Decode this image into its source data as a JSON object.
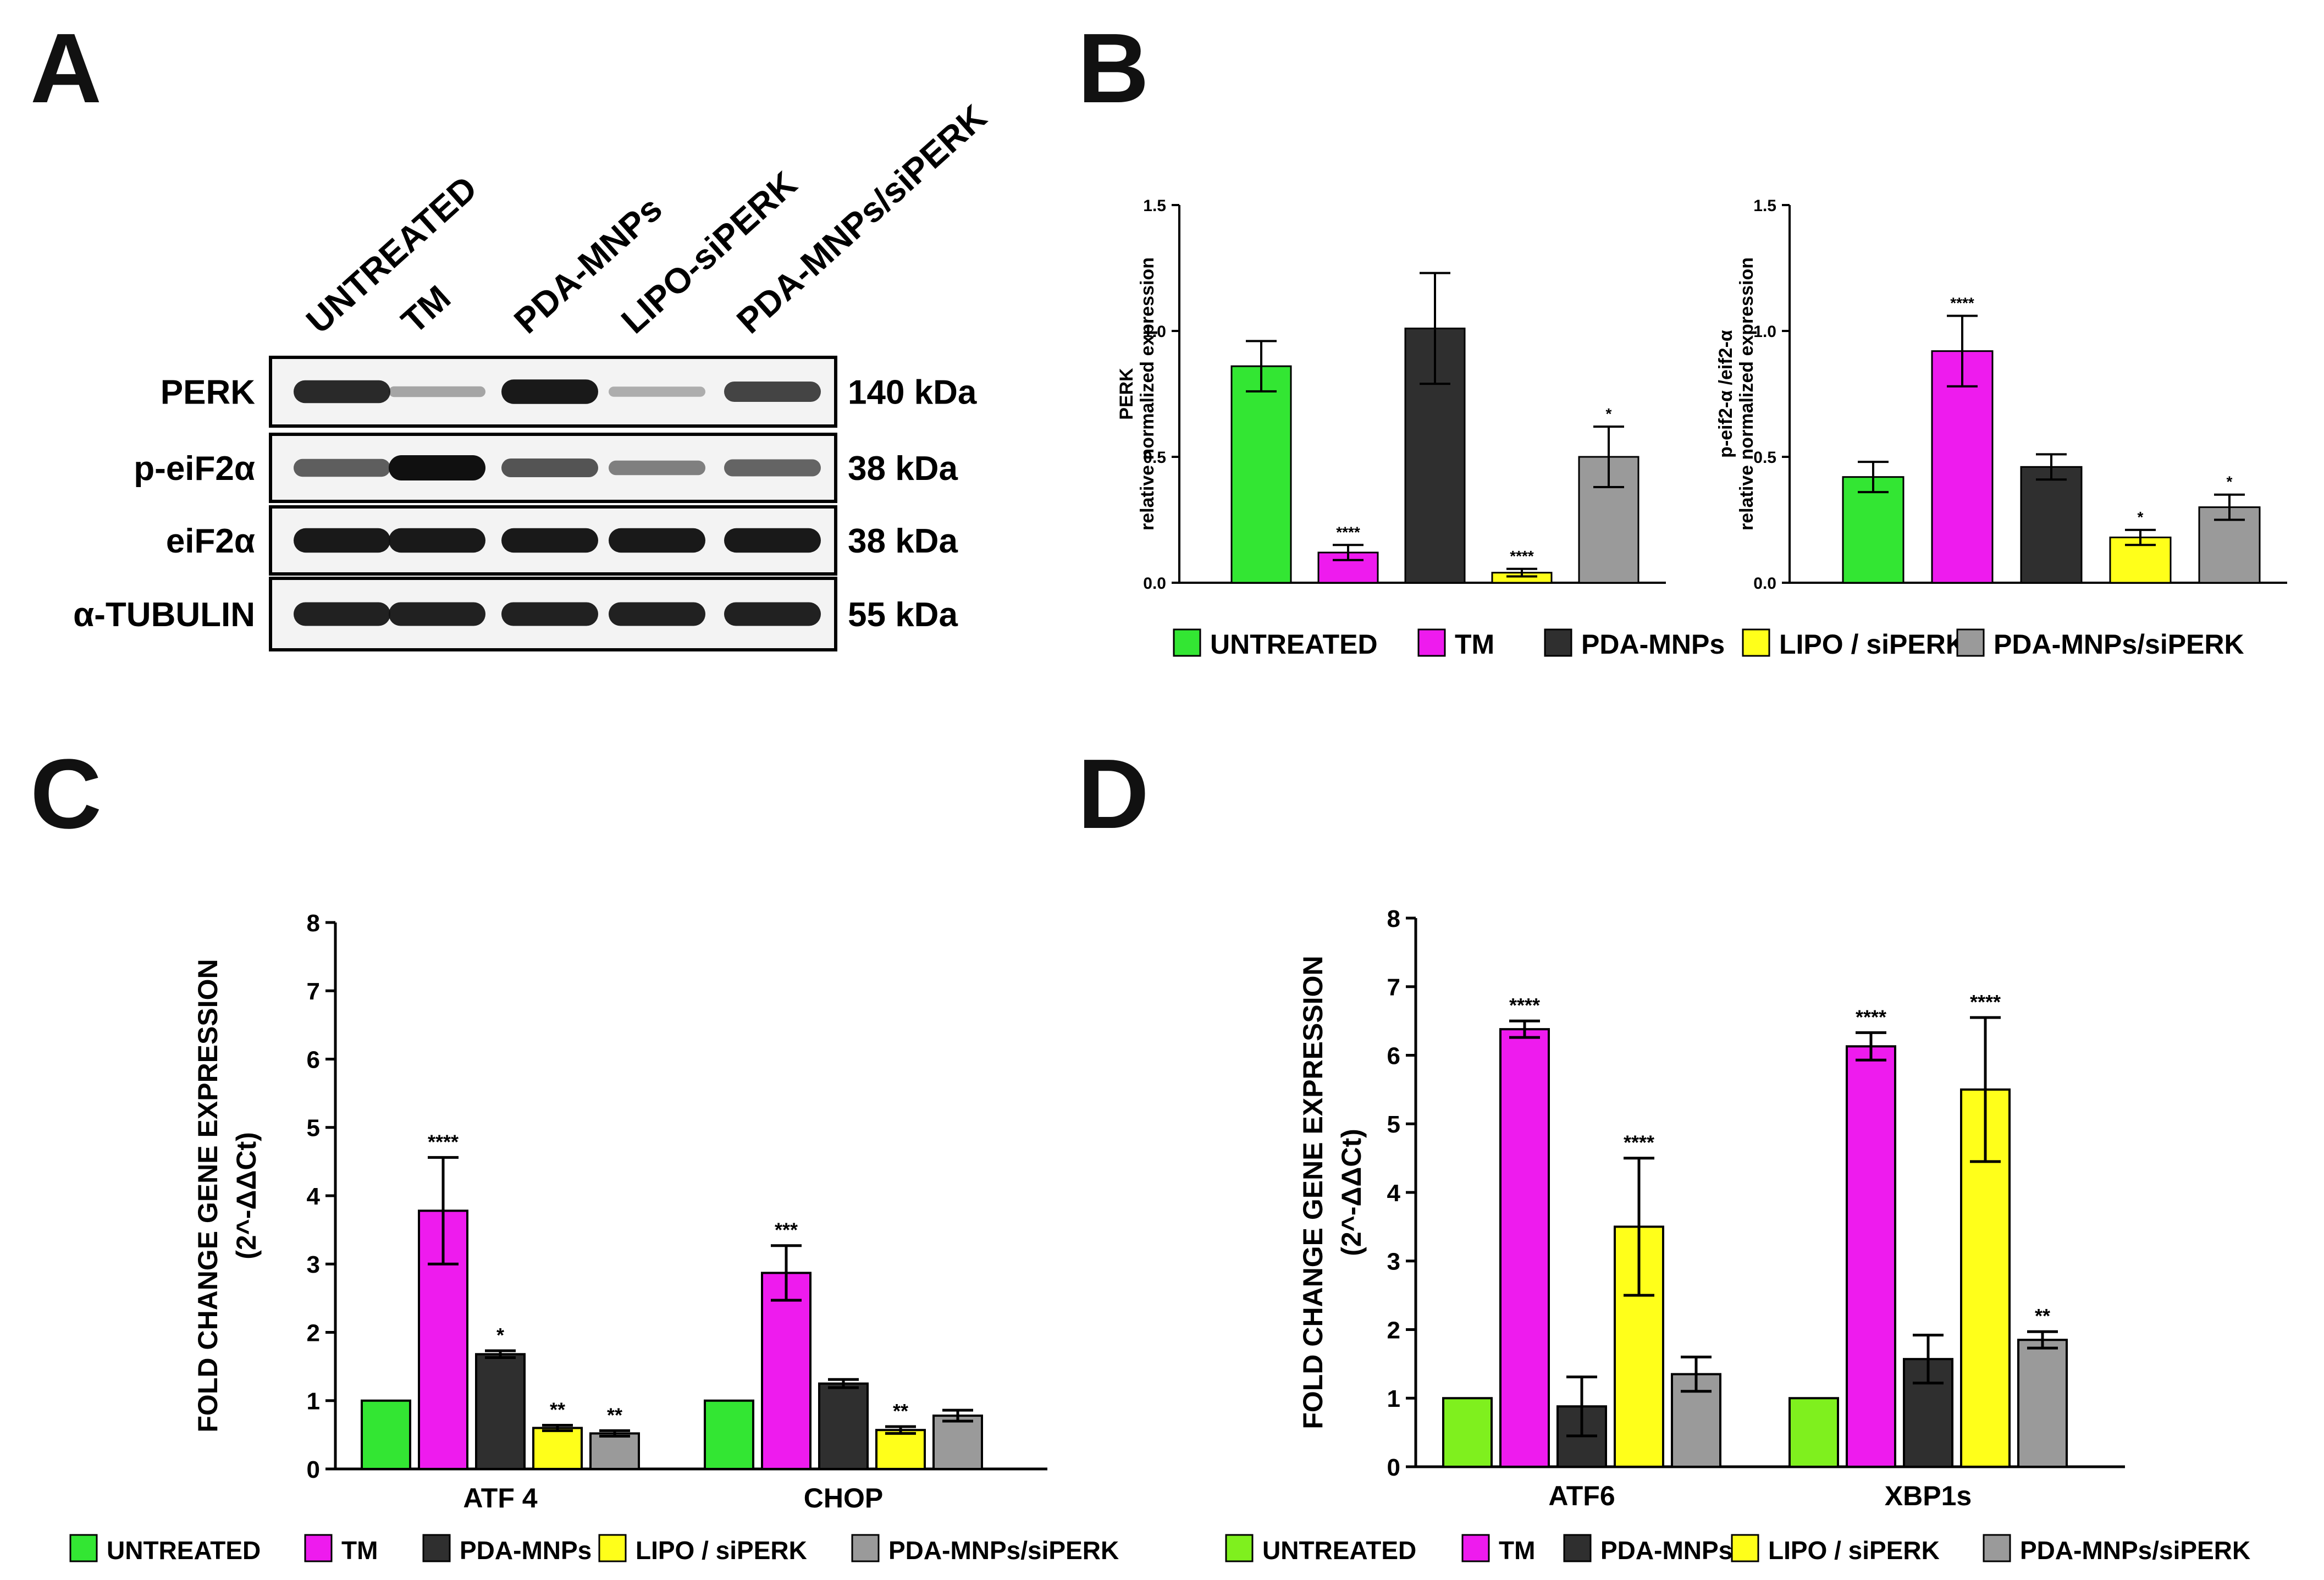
{
  "panels": {
    "a": "A",
    "b": "B",
    "c": "C",
    "d": "D"
  },
  "colors": {
    "untreated": "#33e633",
    "untreated_alt": "#7ff01e",
    "tm": "#ee1bee",
    "pda": "#2f2f2f",
    "lipo": "#ffff1a",
    "pda_si": "#9a9a9a"
  },
  "legend": {
    "untreated": "UNTREATED",
    "tm": "TM",
    "pda": "PDA-MNPs",
    "lipo": "LIPO / siPERK",
    "pda_si": "PDA-MNPs/siPERK"
  },
  "blot": {
    "lanes": [
      "UNTREATED",
      "TM",
      "PDA-MNPs",
      "LIPO-siPERK",
      "PDA-MNPs/siPERK"
    ],
    "rows": [
      {
        "label": "PERK",
        "size": "140 kDa",
        "intensities": [
          0.85,
          0.12,
          0.95,
          0.08,
          0.7
        ]
      },
      {
        "label": "p-eiF2α",
        "size": "38 kDa",
        "intensities": [
          0.55,
          1.0,
          0.6,
          0.35,
          0.5
        ]
      },
      {
        "label": "eiF2α",
        "size": "38 kDa",
        "intensities": [
          0.95,
          0.95,
          0.95,
          0.95,
          0.95
        ]
      },
      {
        "label": "α-TUBULIN",
        "size": "55 kDa",
        "intensities": [
          0.9,
          0.9,
          0.9,
          0.9,
          0.9
        ]
      }
    ]
  },
  "chart_data": [
    {
      "id": "B1",
      "type": "bar",
      "ylabel": [
        "PERK",
        "relative normalized expression"
      ],
      "ylim": [
        0,
        1.5
      ],
      "yticks": [
        "0.0",
        "0.5",
        "1.0",
        "1.5"
      ],
      "yticks_values": [
        0,
        0.5,
        1.0,
        1.5
      ],
      "categories": [
        ""
      ],
      "series": [
        {
          "name": "UNTREATED",
          "values": [
            0.86
          ],
          "errors": [
            0.1
          ],
          "sig": [
            ""
          ]
        },
        {
          "name": "TM",
          "values": [
            0.12
          ],
          "errors": [
            0.03
          ],
          "sig": [
            "****"
          ]
        },
        {
          "name": "PDA-MNPs",
          "values": [
            1.01
          ],
          "errors": [
            0.22
          ],
          "sig": [
            ""
          ]
        },
        {
          "name": "LIPO / siPERK",
          "values": [
            0.04
          ],
          "errors": [
            0.015
          ],
          "sig": [
            "****"
          ]
        },
        {
          "name": "PDA-MNPs/siPERK",
          "values": [
            0.5
          ],
          "errors": [
            0.12
          ],
          "sig": [
            "*"
          ]
        }
      ]
    },
    {
      "id": "B2",
      "type": "bar",
      "ylabel": [
        "p-eif2-α /eif2-α",
        "relative normalized expression"
      ],
      "ylim": [
        0,
        1.5
      ],
      "yticks": [
        "0.0",
        "0.5",
        "1.0",
        "1.5"
      ],
      "yticks_values": [
        0,
        0.5,
        1.0,
        1.5
      ],
      "categories": [
        ""
      ],
      "series": [
        {
          "name": "UNTREATED",
          "values": [
            0.42
          ],
          "errors": [
            0.06
          ],
          "sig": [
            ""
          ]
        },
        {
          "name": "TM",
          "values": [
            0.92
          ],
          "errors": [
            0.14
          ],
          "sig": [
            "****"
          ]
        },
        {
          "name": "PDA-MNPs",
          "values": [
            0.46
          ],
          "errors": [
            0.05
          ],
          "sig": [
            ""
          ]
        },
        {
          "name": "LIPO / siPERK",
          "values": [
            0.18
          ],
          "errors": [
            0.03
          ],
          "sig": [
            "*"
          ]
        },
        {
          "name": "PDA-MNPs/siPERK",
          "values": [
            0.3
          ],
          "errors": [
            0.05
          ],
          "sig": [
            "*"
          ]
        }
      ]
    },
    {
      "id": "C",
      "type": "bar",
      "ylabel": [
        "FOLD CHANGE GENE EXPRESSION",
        "(2^-ΔΔCt)"
      ],
      "ylim": [
        0,
        8
      ],
      "yticks": [
        "0",
        "1",
        "2",
        "3",
        "4",
        "5",
        "6",
        "7",
        "8"
      ],
      "yticks_values": [
        0,
        1,
        2,
        3,
        4,
        5,
        6,
        7,
        8
      ],
      "categories": [
        "ATF 4",
        "CHOP"
      ],
      "series": [
        {
          "name": "UNTREATED",
          "values": [
            1.0,
            1.0
          ],
          "errors": [
            0,
            0
          ],
          "sig": [
            "",
            ""
          ]
        },
        {
          "name": "TM",
          "values": [
            3.78,
            2.87
          ],
          "errors": [
            0.78,
            0.4
          ],
          "sig": [
            "****",
            "***"
          ]
        },
        {
          "name": "PDA-MNPs",
          "values": [
            1.68,
            1.25
          ],
          "errors": [
            0.05,
            0.06
          ],
          "sig": [
            "*",
            ""
          ]
        },
        {
          "name": "LIPO / siPERK",
          "values": [
            0.6,
            0.57
          ],
          "errors": [
            0.04,
            0.05
          ],
          "sig": [
            "**",
            "**"
          ]
        },
        {
          "name": "PDA-MNPs/siPERK",
          "values": [
            0.52,
            0.78
          ],
          "errors": [
            0.04,
            0.08
          ],
          "sig": [
            "**",
            ""
          ]
        }
      ]
    },
    {
      "id": "D",
      "type": "bar",
      "ylabel": [
        "FOLD CHANGE GENE EXPRESSION",
        "(2^-ΔΔCt)"
      ],
      "ylim": [
        0,
        8
      ],
      "yticks": [
        "0",
        "1",
        "2",
        "3",
        "4",
        "5",
        "6",
        "7",
        "8"
      ],
      "yticks_values": [
        0,
        1,
        2,
        3,
        4,
        5,
        6,
        7,
        8
      ],
      "categories": [
        "ATF6",
        "XBP1s"
      ],
      "series": [
        {
          "name": "UNTREATED",
          "values": [
            1.0,
            1.0
          ],
          "errors": [
            0,
            0
          ],
          "sig": [
            "",
            ""
          ]
        },
        {
          "name": "TM",
          "values": [
            6.38,
            6.13
          ],
          "errors": [
            0.12,
            0.2
          ],
          "sig": [
            "****",
            "****"
          ]
        },
        {
          "name": "PDA-MNPs",
          "values": [
            0.88,
            1.57
          ],
          "errors": [
            0.43,
            0.35
          ],
          "sig": [
            "",
            ""
          ]
        },
        {
          "name": "LIPO / siPERK",
          "values": [
            3.5,
            5.5
          ],
          "errors": [
            1.0,
            1.05
          ],
          "sig": [
            "****",
            "****"
          ]
        },
        {
          "name": "PDA-MNPs/siPERK",
          "values": [
            1.35,
            1.85
          ],
          "errors": [
            0.25,
            0.12
          ],
          "sig": [
            "",
            "**"
          ]
        }
      ]
    }
  ]
}
